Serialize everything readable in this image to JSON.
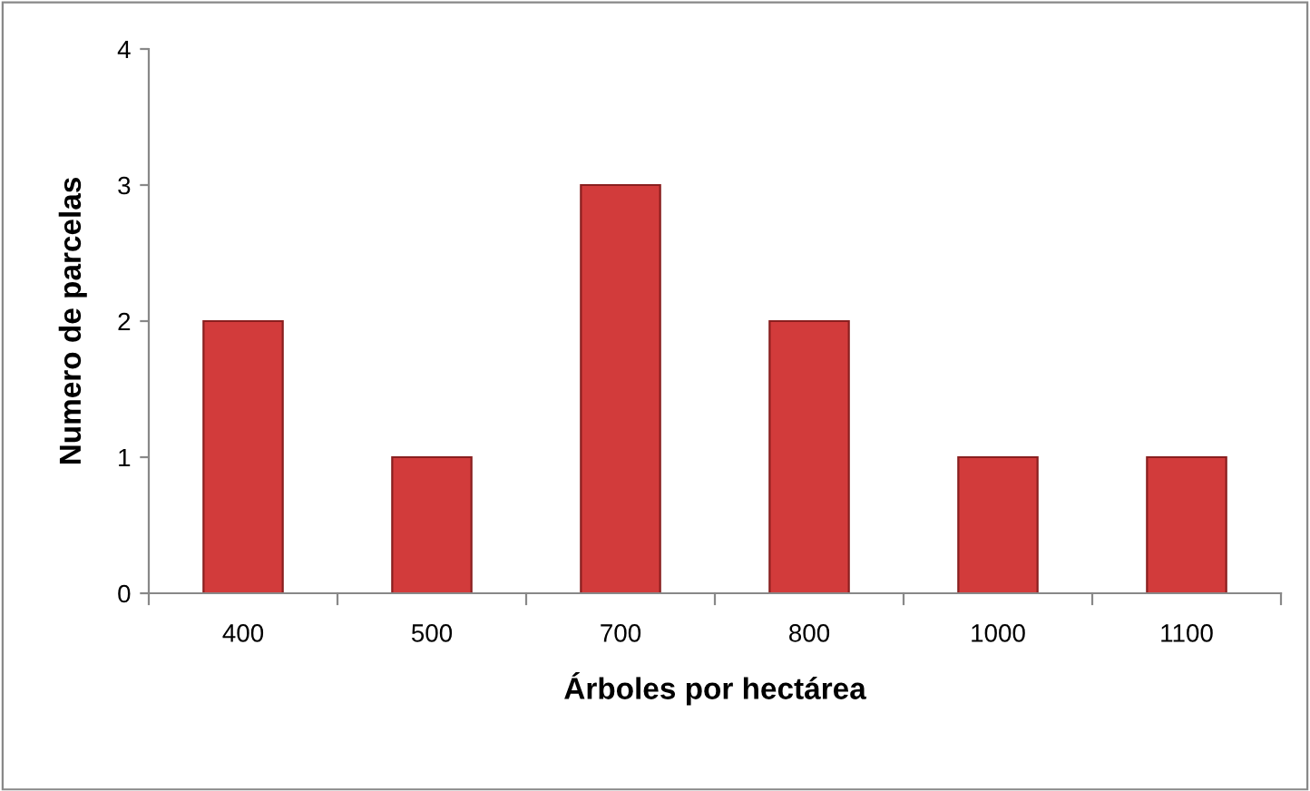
{
  "chart_data": {
    "type": "bar",
    "xlabel": "Árboles por hectárea",
    "ylabel": "Numero de parcelas",
    "categories": [
      "400",
      "500",
      "700",
      "800",
      "1000",
      "1100"
    ],
    "values": [
      2,
      1,
      3,
      2,
      1,
      1
    ],
    "color": "#d23b3b",
    "ylim": [
      0,
      4
    ],
    "yticks": [
      0,
      1,
      2,
      3,
      4
    ],
    "grid": false,
    "legend": false
  }
}
